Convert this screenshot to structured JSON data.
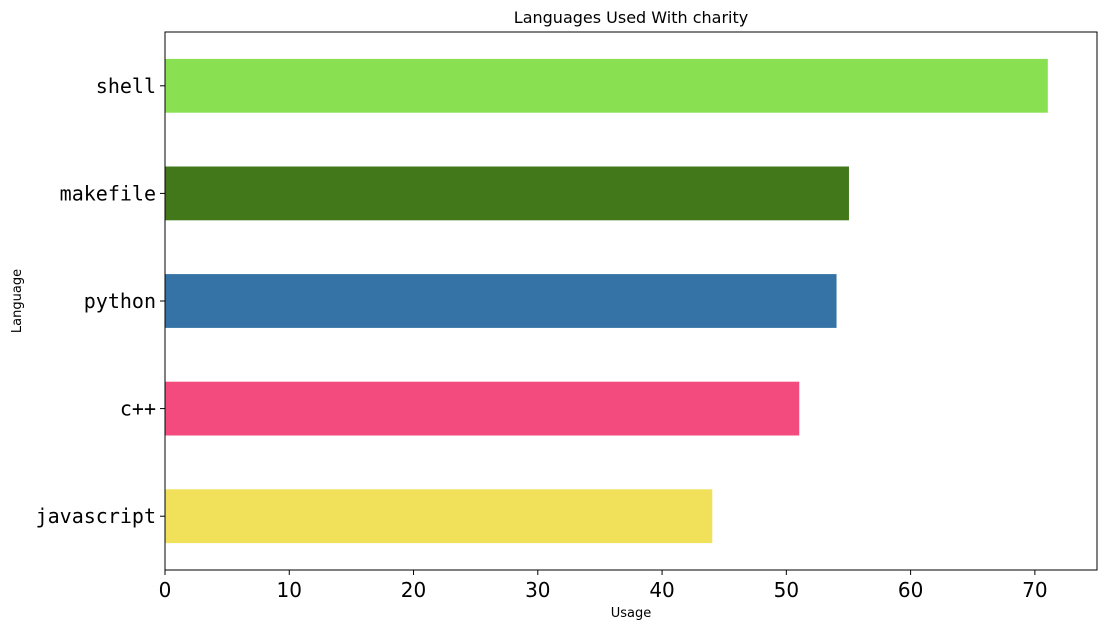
{
  "chart_data": {
    "type": "bar",
    "orientation": "horizontal",
    "title": "Languages Used With charity",
    "xlabel": "Usage",
    "ylabel": "Language",
    "categories": [
      "javascript",
      "c++",
      "python",
      "makefile",
      "shell"
    ],
    "values": [
      44,
      51,
      54,
      55,
      71
    ],
    "colors": [
      "#f1e05a",
      "#f34b7d",
      "#3572a5",
      "#427819",
      "#89e051"
    ],
    "xlim": [
      0,
      75
    ],
    "xticks": [
      0,
      10,
      20,
      30,
      40,
      50,
      60,
      70
    ],
    "grid": false,
    "legend": "none"
  }
}
